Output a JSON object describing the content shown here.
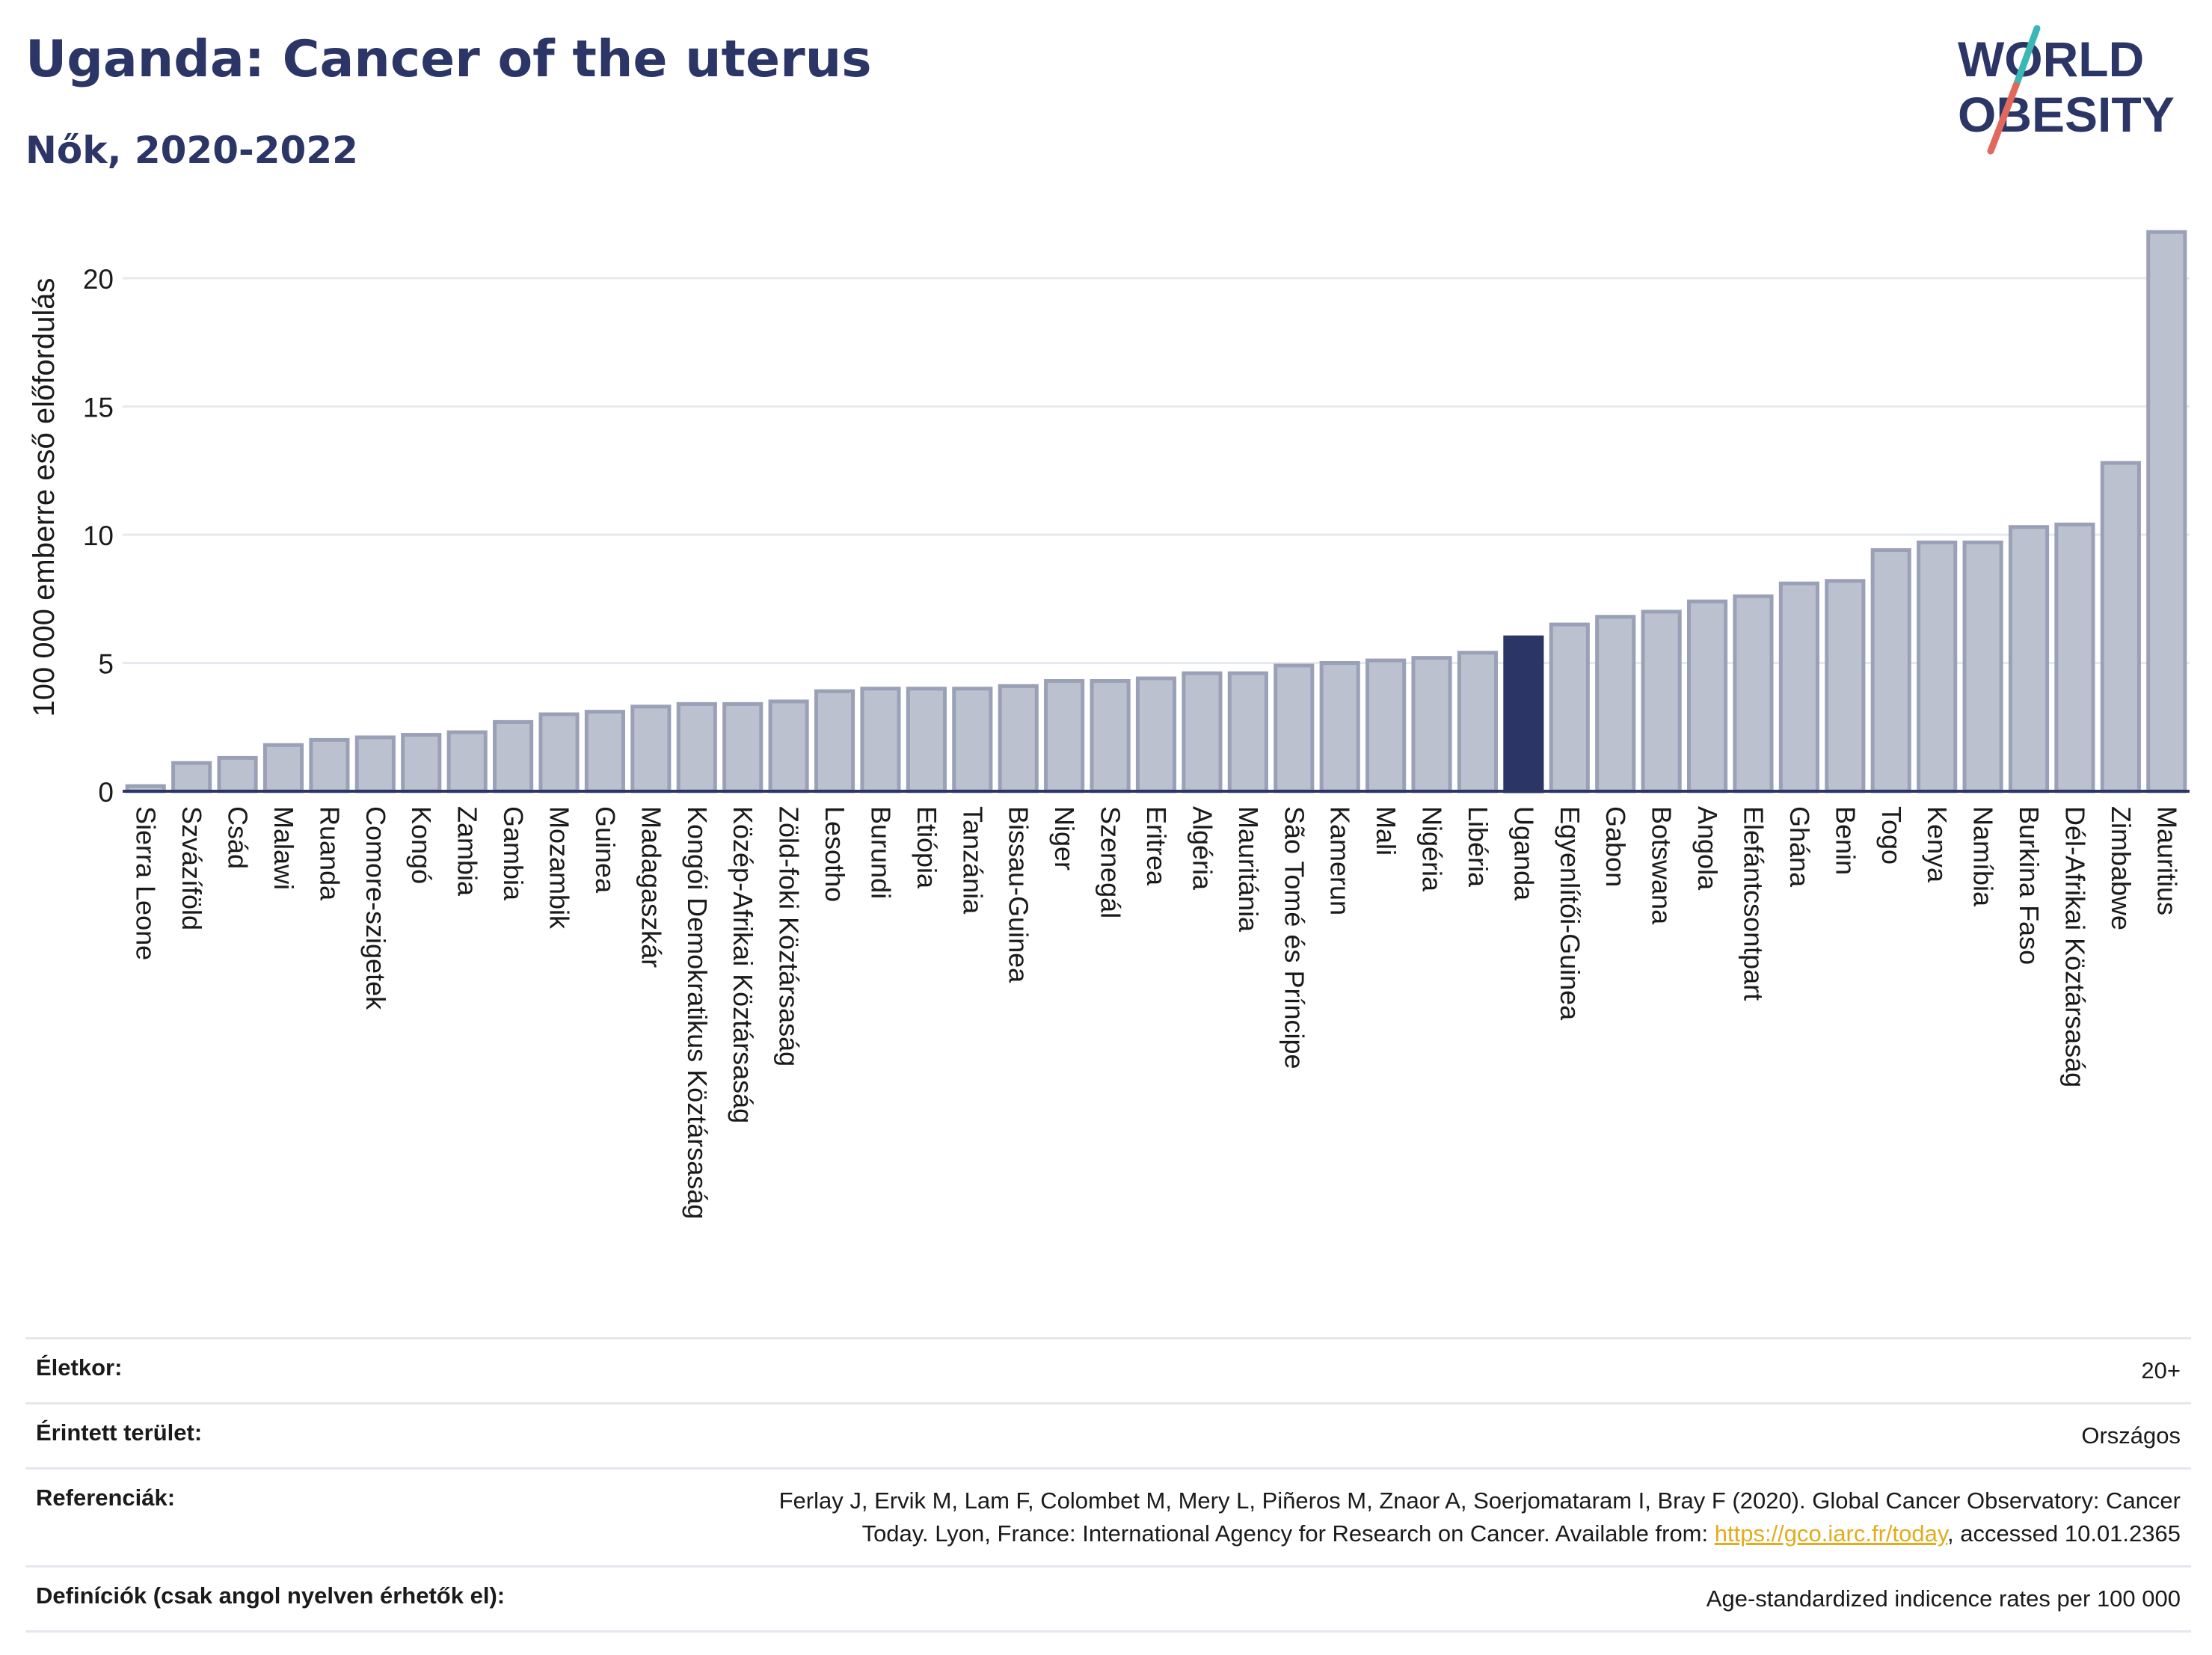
{
  "header": {
    "title": "Uganda: Cancer of the uterus",
    "subtitle": "Nők, 2020-2022"
  },
  "logo": {
    "line1": "WORLD",
    "line2": "OBESITY",
    "accent_teal": "#3bb8b6",
    "accent_red": "#e2685c"
  },
  "colors": {
    "bar_fill": "#bcc1cf",
    "bar_stroke": "#9aa1b7",
    "highlight": "#2b3566",
    "grid": "#e6e9ef"
  },
  "chart_data": {
    "type": "bar",
    "title": "Uganda: Cancer of the uterus",
    "subtitle": "Nők, 2020-2022",
    "ylabel": "100 000 emberre eső előfordulás",
    "xlabel": "",
    "ylim": [
      0,
      22
    ],
    "yticks": [
      0,
      5,
      10,
      15,
      20
    ],
    "grid": true,
    "highlight": "Uganda",
    "categories": [
      "Sierra Leone",
      "Szvázíföld",
      "Csád",
      "Malawi",
      "Ruanda",
      "Comore-szigetek",
      "Kongó",
      "Zambia",
      "Gambia",
      "Mozambik",
      "Guinea",
      "Madagaszkár",
      "Kongói Demokratikus Köztársaság",
      "Közép-Afrikai Köztársaság",
      "Zöld-foki Köztársaság",
      "Lesotho",
      "Burundi",
      "Etiópia",
      "Tanzánia",
      "Bissau-Guinea",
      "Niger",
      "Szenegál",
      "Eritrea",
      "Algéria",
      "Mauritánia",
      "São Tomé és Príncipe",
      "Kamerun",
      "Mali",
      "Nigéria",
      "Libéria",
      "Uganda",
      "Egyenlítői-Guinea",
      "Gabon",
      "Botswana",
      "Angola",
      "Elefántcsontpart",
      "Ghána",
      "Benin",
      "Togo",
      "Kenya",
      "Namíbia",
      "Burkina Faso",
      "Dél-Afrikai Köztársaság",
      "Zimbabwe",
      "Mauritius"
    ],
    "values": [
      0.2,
      1.1,
      1.3,
      1.8,
      2.0,
      2.1,
      2.2,
      2.3,
      2.7,
      3.0,
      3.1,
      3.3,
      3.4,
      3.4,
      3.5,
      3.9,
      4.0,
      4.0,
      4.0,
      4.1,
      4.3,
      4.3,
      4.4,
      4.6,
      4.6,
      4.9,
      5.0,
      5.1,
      5.2,
      5.4,
      6.0,
      6.5,
      6.8,
      7.0,
      7.4,
      7.6,
      8.1,
      8.2,
      9.4,
      9.7,
      9.7,
      10.3,
      10.4,
      12.8,
      21.8
    ]
  },
  "info": {
    "age_label": "Életkor:",
    "age_value": "20+",
    "area_label": "Érintett terület:",
    "area_value": "Országos",
    "ref_label": "Referenciák:",
    "ref_text_1": "Ferlay J, Ervik M, Lam F, Colombet M, Mery L, Piñeros M, Znaor A, Soerjomataram I, Bray F (2020). Global Cancer Observatory: Cancer",
    "ref_text_2": "Today. Lyon, France: International Agency for Research on Cancer. Available from: ",
    "ref_link": "https://gco.iarc.fr/today",
    "ref_text_3": ", accessed 10.01.2365",
    "def_label": "Definíciók (csak angol nyelven érhetők el):",
    "def_value": "Age-standardized indicence rates per 100 000"
  }
}
